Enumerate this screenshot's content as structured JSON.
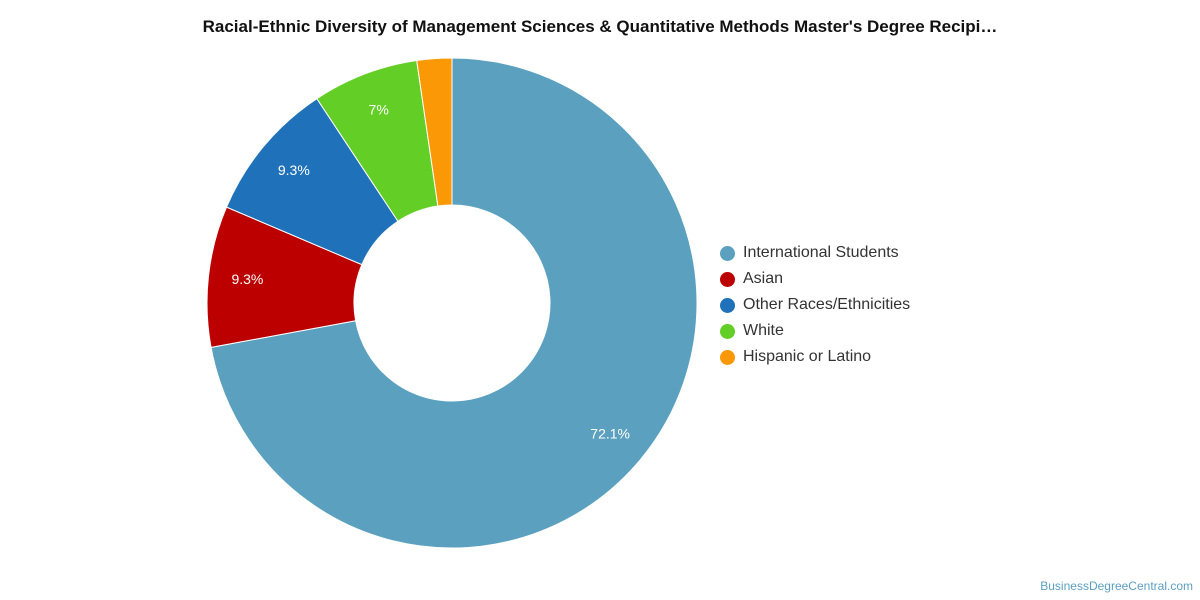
{
  "title": "Racial-Ethnic Diversity of Management Sciences & Quantitative Methods Master's Degree Recipi…",
  "watermark": "BusinessDegreeCentral.com",
  "chart_data": {
    "type": "pie",
    "donut": true,
    "legend_position": "right",
    "categories": [
      "International Students",
      "Asian",
      "Other Races/Ethnicities",
      "White",
      "Hispanic or Latino"
    ],
    "values": [
      72.1,
      9.3,
      9.3,
      7.0,
      2.3
    ],
    "data_labels": [
      "72.1%",
      "9.3%",
      "9.3%",
      "7%",
      ""
    ],
    "colors": [
      "#5ba1bf",
      "#bc0000",
      "#1f72ba",
      "#63ce25",
      "#fa9806"
    ]
  }
}
